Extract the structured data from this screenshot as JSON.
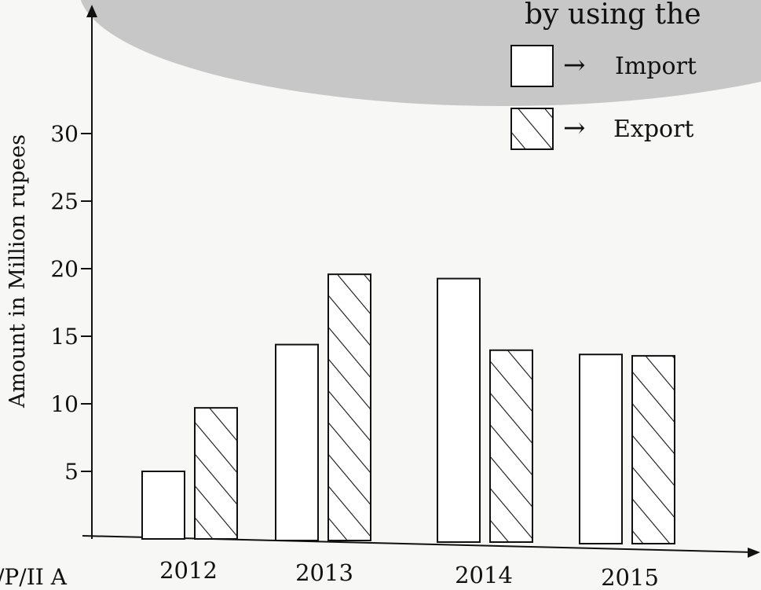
{
  "header_fragment": "by using the",
  "footer_fragment": "/P/II   A",
  "chart_data": {
    "type": "bar",
    "title": "",
    "xlabel": "",
    "ylabel": "Amount in Million rupees",
    "categories": [
      "2012",
      "2013",
      "2014",
      "2015"
    ],
    "yticks": [
      5,
      10,
      15,
      20,
      25,
      30
    ],
    "ylim": [
      0,
      30
    ],
    "grid": false,
    "legend": {
      "position": "top-right",
      "arrow": "→",
      "entries": [
        "Import",
        "Export"
      ]
    },
    "series": [
      {
        "name": "Import",
        "fill": "none",
        "values": [
          5,
          14.5,
          19.5,
          14
        ]
      },
      {
        "name": "Export",
        "fill": "hatched",
        "values": [
          9.7,
          19.7,
          14.2,
          13.9
        ]
      }
    ]
  },
  "colors": {
    "background": "#f7f7f5",
    "ink": "#111111",
    "overlay": "#c7c7c7"
  }
}
